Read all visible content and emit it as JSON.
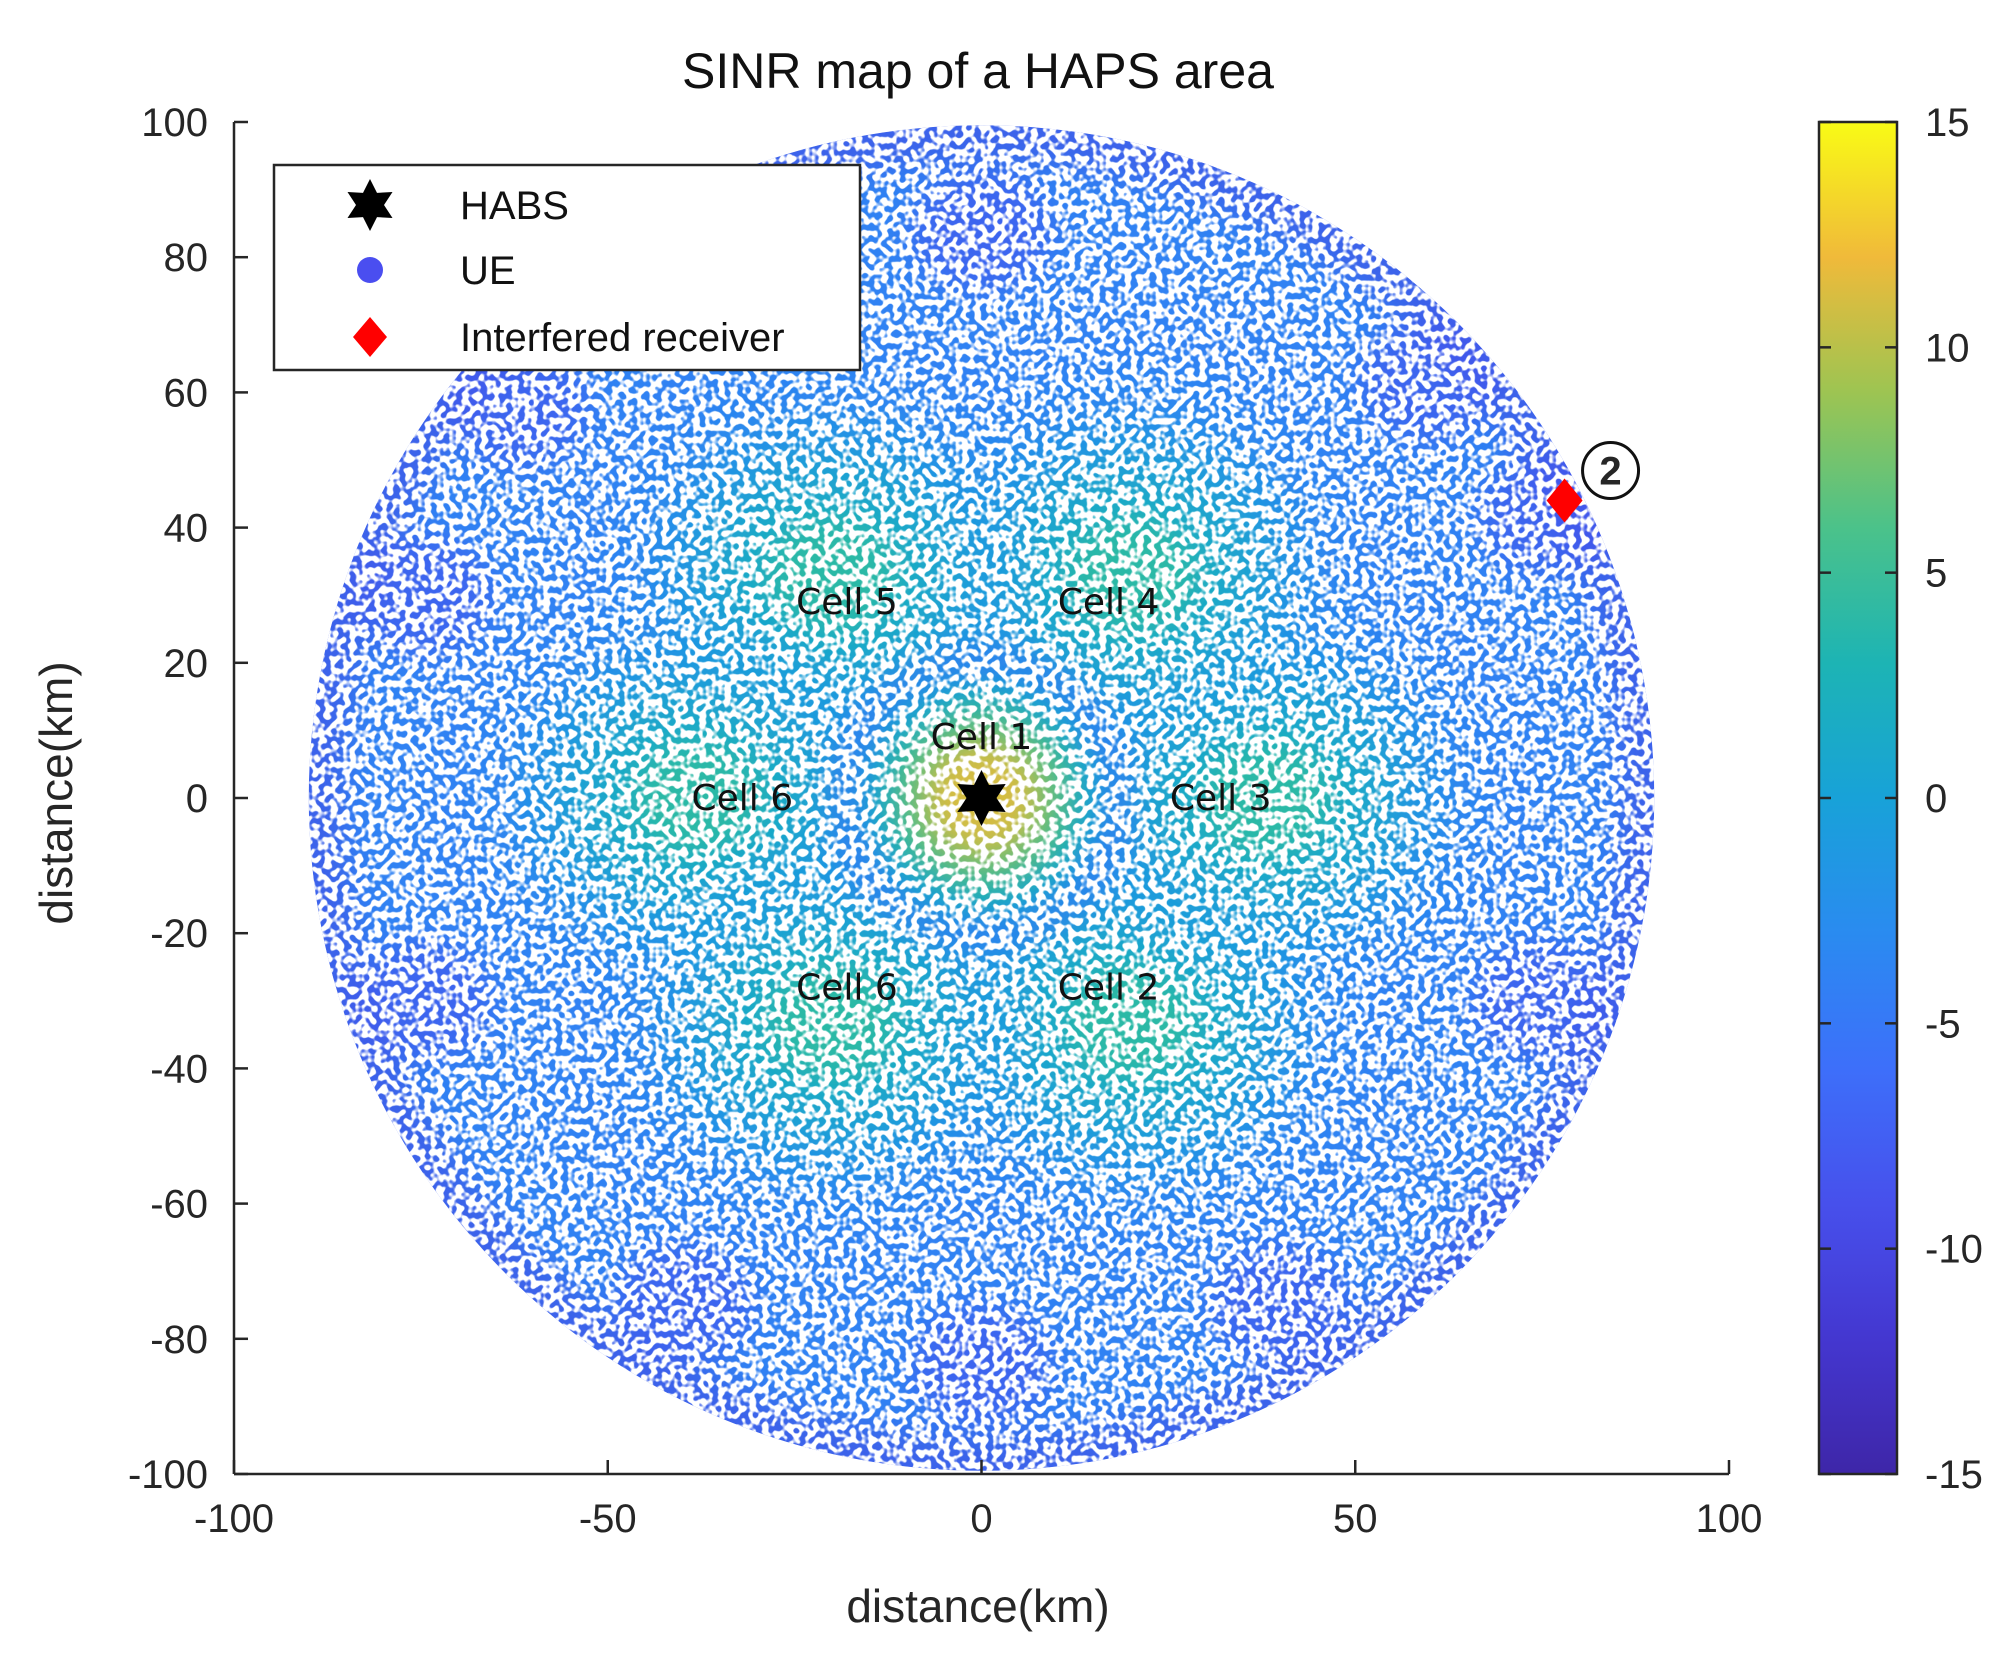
{
  "chart_data": {
    "type": "heatmap",
    "title": "SINR map of a HAPS area",
    "xlabel": "distance(km)",
    "ylabel": "distance(km)",
    "xlim": [
      -100,
      100
    ],
    "ylim": [
      -100,
      100
    ],
    "xticks": [
      -100,
      -50,
      0,
      50,
      100
    ],
    "yticks": [
      100,
      80,
      60,
      40,
      20,
      0,
      -20,
      -40,
      -60,
      -80,
      -100
    ],
    "area_radius_km": 90,
    "colorbar": {
      "min": -15,
      "max": 15,
      "ticks": [
        15,
        10,
        5,
        0,
        -5,
        -10,
        -15
      ],
      "colormap": "parula"
    },
    "legend": {
      "placement": "top-left",
      "entries": [
        {
          "label": "HABS",
          "marker": "star-icon",
          "color": "#000000"
        },
        {
          "label": "UE",
          "marker": "circle-icon",
          "color": "#4a4ef0"
        },
        {
          "label": "Interfered receiver",
          "marker": "diamond-icon",
          "color": "#ff0000"
        }
      ]
    },
    "habs": {
      "x": 0,
      "y": 0,
      "label": "HABS"
    },
    "interfered_receiver": {
      "x": 78,
      "y": 44,
      "annotation": "2"
    },
    "cells": [
      {
        "label": "Cell 1",
        "x": 0,
        "y": 0,
        "label_x": 0,
        "label_y": 9,
        "peak_sinr": 11
      },
      {
        "label": "Cell 2",
        "x": 20,
        "y": -33,
        "label_x": 17,
        "label_y": -28,
        "peak_sinr": 4
      },
      {
        "label": "Cell 3",
        "x": 38,
        "y": 0,
        "label_x": 32,
        "label_y": 0,
        "peak_sinr": 4
      },
      {
        "label": "Cell 4",
        "x": 20,
        "y": 33,
        "label_x": 17,
        "label_y": 29,
        "peak_sinr": 4
      },
      {
        "label": "Cell 5",
        "x": -20,
        "y": 33,
        "label_x": -18,
        "label_y": 29,
        "peak_sinr": 4
      },
      {
        "label": "Cell 6",
        "x": -38,
        "y": 0,
        "label_x": -32,
        "label_y": 0,
        "peak_sinr": 4
      },
      {
        "label": "Cell 6",
        "x": -20,
        "y": -33,
        "label_x": -18,
        "label_y": -28,
        "peak_sinr": 4
      }
    ],
    "background_sinr": -4,
    "edge_sinr": -9
  }
}
